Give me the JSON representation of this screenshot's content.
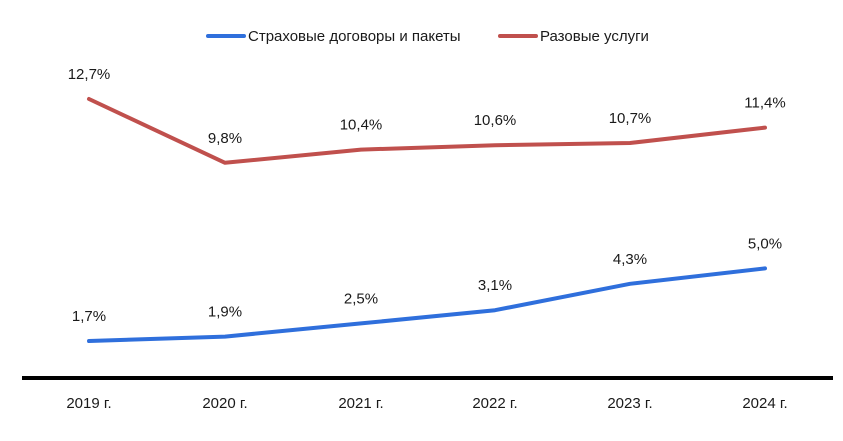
{
  "chart_data": {
    "type": "line",
    "title": "",
    "xlabel": "",
    "ylabel": "",
    "grid": false,
    "legend_position": "top",
    "categories": [
      "2019 г.",
      "2020 г.",
      "2021 г.",
      "2022 г.",
      "2023 г.",
      "2024 г."
    ],
    "series": [
      {
        "name": "Страховые договоры и пакеты",
        "color": "#2f6fdc",
        "values": [
          1.7,
          1.9,
          2.5,
          3.1,
          4.3,
          5.0
        ],
        "labels": [
          "1,7%",
          "1,9%",
          "2,5%",
          "3,1%",
          "4,3%",
          "5,0%"
        ]
      },
      {
        "name": "Разовые услуги",
        "color": "#c0504d",
        "values": [
          12.7,
          9.8,
          10.4,
          10.6,
          10.7,
          11.4
        ],
        "labels": [
          "12,7%",
          "9,8%",
          "10,4%",
          "10,6%",
          "10,7%",
          "11,4%"
        ]
      }
    ]
  },
  "legend": {
    "items": [
      {
        "label": "Страховые договоры и пакеты",
        "color": "#2f6fdc"
      },
      {
        "label": "Разовые услуги",
        "color": "#c0504d"
      }
    ]
  },
  "axis": {
    "color": "#000000"
  }
}
